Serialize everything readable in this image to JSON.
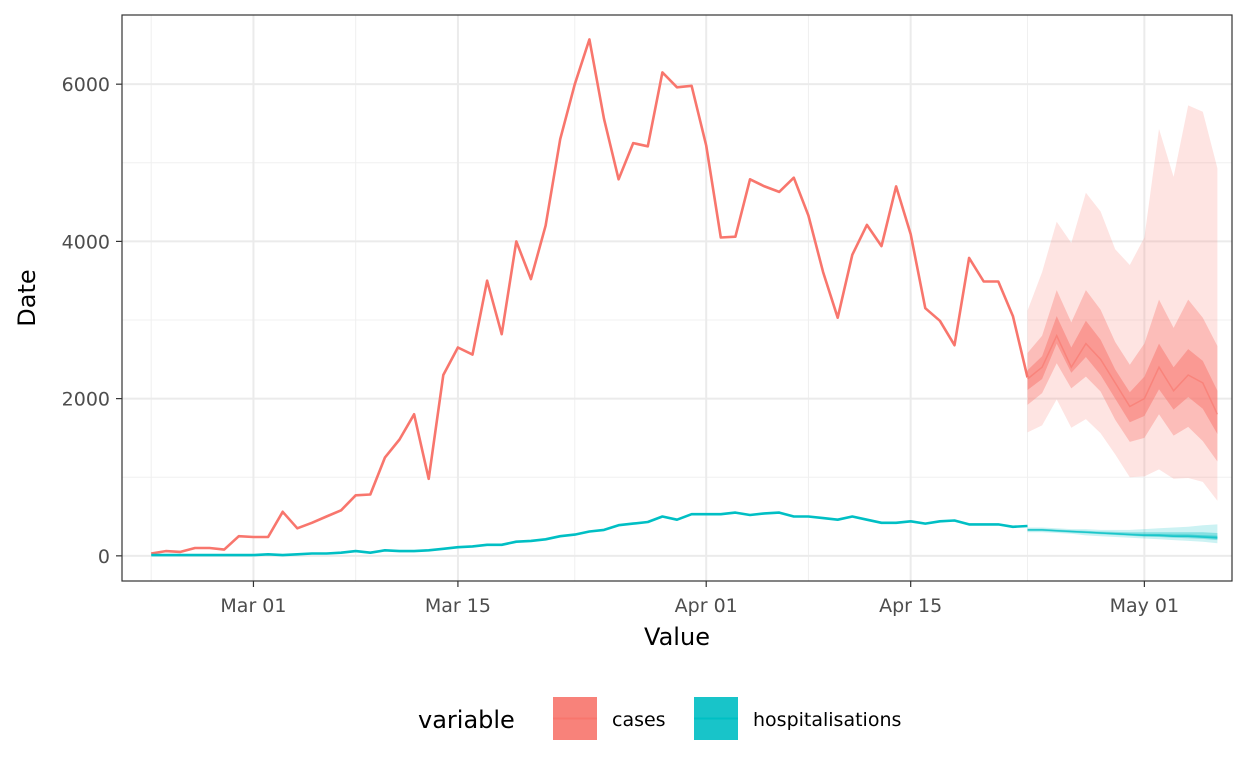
{
  "chart_data": {
    "type": "line",
    "xlabel": "Value",
    "ylabel": "Date",
    "x_range": [
      "2021-02-20",
      "2021-05-07"
    ],
    "y_range": [
      -320,
      6880
    ],
    "x_ticks": [
      {
        "date": "2021-03-01",
        "label": "Mar 01"
      },
      {
        "date": "2021-03-15",
        "label": "Mar 15"
      },
      {
        "date": "2021-04-01",
        "label": "Apr 01"
      },
      {
        "date": "2021-04-15",
        "label": "Apr 15"
      },
      {
        "date": "2021-05-01",
        "label": "May 01"
      }
    ],
    "x_minor_ticks": [
      "2021-02-22",
      "2021-03-08",
      "2021-03-23",
      "2021-04-08",
      "2021-04-23",
      "2021-05-08"
    ],
    "y_ticks": [
      {
        "value": 0,
        "label": "0"
      },
      {
        "value": 2000,
        "label": "2000"
      },
      {
        "value": 4000,
        "label": "4000"
      },
      {
        "value": 6000,
        "label": "6000"
      }
    ],
    "y_minor_ticks": [
      1000,
      3000,
      5000
    ],
    "grid": true,
    "legend": {
      "title": "variable",
      "position": "bottom",
      "entries": [
        {
          "label": "cases",
          "color": "#F8766D"
        },
        {
          "label": "hospitalisations",
          "color": "#00BFC4"
        }
      ]
    },
    "series": [
      {
        "name": "cases",
        "color": "#F8766D",
        "start_date": "2021-02-22",
        "values": [
          30,
          60,
          50,
          100,
          100,
          80,
          250,
          240,
          240,
          560,
          350,
          420,
          500,
          580,
          770,
          780,
          1250,
          1480,
          1800,
          980,
          2300,
          2650,
          2560,
          3500,
          2820,
          4000,
          3520,
          4200,
          5300,
          6000,
          6570,
          5560,
          4790,
          5250,
          5210,
          6150,
          5960,
          5980,
          5220,
          4050,
          4060,
          4790,
          4700,
          4630,
          4810,
          4330,
          3610,
          3030,
          3830,
          4210,
          3940,
          4700,
          4090,
          3150,
          2990,
          2680,
          3790,
          3490,
          3490,
          3050,
          2270
        ]
      },
      {
        "name": "hospitalisations",
        "color": "#00BFC4",
        "start_date": "2021-02-22",
        "values": [
          10,
          10,
          10,
          10,
          10,
          10,
          10,
          10,
          20,
          10,
          20,
          30,
          30,
          40,
          60,
          40,
          70,
          60,
          60,
          70,
          90,
          110,
          120,
          140,
          140,
          180,
          190,
          210,
          250,
          270,
          310,
          330,
          390,
          410,
          430,
          500,
          460,
          530,
          530,
          530,
          550,
          520,
          540,
          550,
          500,
          500,
          480,
          460,
          500,
          460,
          420,
          420,
          440,
          410,
          440,
          450,
          400,
          400,
          400,
          370,
          380
        ]
      }
    ],
    "forecast": [
      {
        "name": "cases",
        "color": "#F8766D",
        "start_date": "2021-04-23",
        "median": [
          2250,
          2400,
          2800,
          2400,
          2700,
          2500,
          2200,
          1900,
          2000,
          2400,
          2100,
          2300,
          2200,
          1800
        ],
        "lower_90": [
          1570,
          1660,
          1990,
          1630,
          1740,
          1560,
          1290,
          1000,
          1010,
          1100,
          980,
          990,
          940,
          700
        ],
        "upper_90": [
          3120,
          3610,
          4250,
          3980,
          4620,
          4380,
          3900,
          3700,
          4050,
          5430,
          4820,
          5730,
          5650,
          4930
        ],
        "lower_50": [
          1920,
          2070,
          2450,
          2130,
          2280,
          2090,
          1730,
          1450,
          1500,
          1800,
          1530,
          1640,
          1460,
          1200
        ],
        "upper_50": [
          2580,
          2800,
          3380,
          2970,
          3380,
          3130,
          2720,
          2430,
          2700,
          3260,
          2900,
          3260,
          3030,
          2670
        ],
        "lower_30": [
          2110,
          2250,
          2700,
          2330,
          2530,
          2300,
          2000,
          1700,
          1780,
          2120,
          1860,
          2020,
          1870,
          1550
        ],
        "upper_30": [
          2360,
          2540,
          3050,
          2650,
          2990,
          2750,
          2370,
          2080,
          2280,
          2700,
          2400,
          2630,
          2480,
          2100
        ]
      },
      {
        "name": "hospitalisations",
        "color": "#00BFC4",
        "start_date": "2021-04-23",
        "median": [
          330,
          330,
          320,
          310,
          300,
          290,
          280,
          270,
          260,
          260,
          250,
          250,
          240,
          230
        ],
        "lower_90": [
          300,
          300,
          290,
          280,
          260,
          250,
          240,
          230,
          220,
          210,
          200,
          190,
          180,
          160
        ],
        "upper_90": [
          360,
          360,
          350,
          340,
          340,
          330,
          330,
          330,
          340,
          350,
          360,
          370,
          390,
          400
        ],
        "lower_50": [
          315,
          315,
          305,
          295,
          285,
          275,
          265,
          255,
          245,
          240,
          230,
          225,
          215,
          200
        ],
        "upper_50": [
          345,
          345,
          335,
          325,
          320,
          310,
          305,
          300,
          300,
          300,
          300,
          300,
          300,
          290
        ],
        "lower_30": [
          322,
          322,
          312,
          302,
          292,
          282,
          272,
          262,
          252,
          250,
          240,
          238,
          228,
          215
        ],
        "upper_30": [
          338,
          338,
          328,
          318,
          310,
          300,
          292,
          284,
          278,
          278,
          272,
          272,
          262,
          255
        ]
      }
    ]
  }
}
